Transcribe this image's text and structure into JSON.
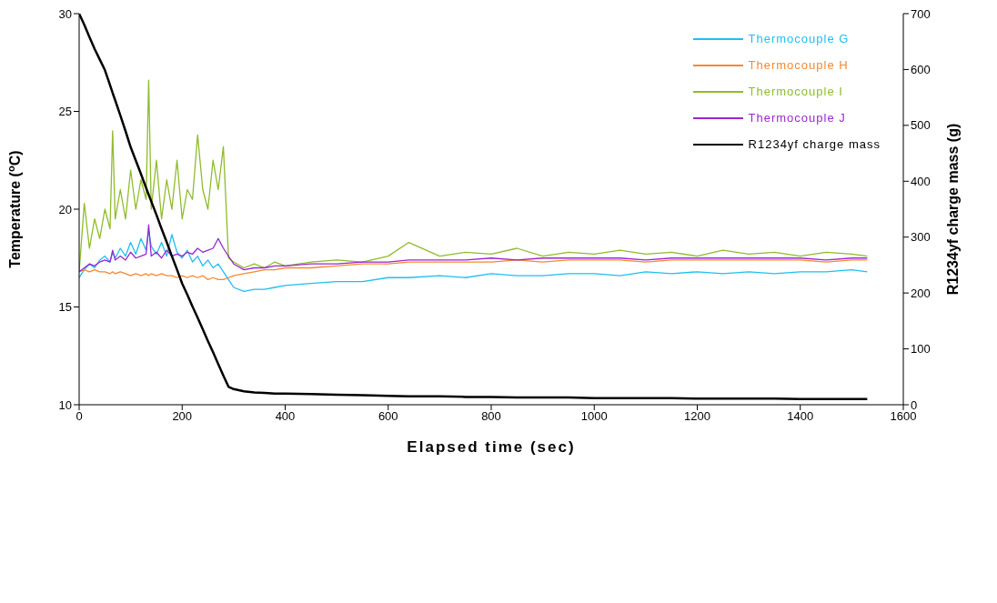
{
  "chart_data": {
    "type": "line",
    "xlabel": "Elapsed time (sec)",
    "ylabel": "Temperature ($^{o}$C)",
    "y2label": "R1234yf charge mass (g)",
    "x": [
      0,
      10,
      20,
      30,
      40,
      50,
      60,
      65,
      70,
      80,
      90,
      100,
      110,
      120,
      130,
      135,
      140,
      150,
      160,
      170,
      180,
      190,
      200,
      210,
      220,
      230,
      240,
      250,
      260,
      270,
      280,
      290,
      300,
      320,
      340,
      360,
      380,
      400,
      450,
      500,
      550,
      600,
      640,
      700,
      750,
      800,
      850,
      900,
      950,
      1000,
      1050,
      1100,
      1150,
      1200,
      1250,
      1300,
      1350,
      1400,
      1450,
      1500,
      1530
    ],
    "series": [
      {
        "name": "Thermocouple G",
        "color": "#1ebff0",
        "values": [
          16.5,
          16.9,
          17.2,
          17.0,
          17.4,
          17.6,
          17.3,
          17.8,
          17.5,
          18.0,
          17.6,
          18.3,
          17.7,
          18.5,
          17.9,
          18.9,
          18.1,
          17.7,
          18.3,
          17.6,
          18.7,
          17.8,
          17.5,
          17.9,
          17.3,
          17.6,
          17.1,
          17.4,
          17.0,
          17.2,
          16.8,
          16.4,
          16.0,
          15.8,
          15.9,
          15.9,
          16.0,
          16.1,
          16.2,
          16.3,
          16.3,
          16.5,
          16.5,
          16.6,
          16.5,
          16.7,
          16.6,
          16.6,
          16.7,
          16.7,
          16.6,
          16.8,
          16.7,
          16.8,
          16.7,
          16.8,
          16.7,
          16.8,
          16.8,
          16.9,
          16.8
        ]
      },
      {
        "name": "Thermocouple H",
        "color": "#f7882f",
        "values": [
          16.8,
          16.9,
          16.8,
          16.9,
          16.8,
          16.8,
          16.7,
          16.8,
          16.7,
          16.8,
          16.7,
          16.6,
          16.7,
          16.6,
          16.7,
          16.6,
          16.7,
          16.6,
          16.7,
          16.6,
          16.6,
          16.5,
          16.6,
          16.5,
          16.6,
          16.5,
          16.6,
          16.4,
          16.5,
          16.4,
          16.4,
          16.5,
          16.6,
          16.7,
          16.8,
          16.9,
          16.9,
          17.0,
          17.0,
          17.1,
          17.2,
          17.2,
          17.3,
          17.3,
          17.3,
          17.3,
          17.4,
          17.3,
          17.4,
          17.4,
          17.4,
          17.3,
          17.4,
          17.4,
          17.4,
          17.4,
          17.4,
          17.4,
          17.3,
          17.4,
          17.4
        ]
      },
      {
        "name": "Thermocouple I",
        "color": "#8fbc2b",
        "values": [
          16.8,
          20.3,
          18.0,
          19.5,
          18.5,
          20.0,
          19.0,
          24.0,
          19.5,
          21.0,
          19.5,
          22.0,
          20.0,
          21.5,
          20.5,
          26.6,
          20.0,
          22.5,
          19.5,
          21.5,
          20.0,
          22.5,
          19.5,
          21.0,
          20.5,
          23.8,
          21.0,
          20.0,
          22.5,
          21.0,
          23.2,
          17.5,
          17.3,
          17.0,
          17.2,
          17.0,
          17.3,
          17.1,
          17.3,
          17.4,
          17.3,
          17.6,
          18.3,
          17.6,
          17.8,
          17.7,
          18.0,
          17.6,
          17.8,
          17.7,
          17.9,
          17.7,
          17.8,
          17.6,
          17.9,
          17.7,
          17.8,
          17.6,
          17.8,
          17.7,
          17.6
        ]
      },
      {
        "name": "Thermocouple J",
        "color": "#9b27d1",
        "values": [
          16.8,
          17.0,
          17.2,
          17.1,
          17.3,
          17.4,
          17.3,
          17.9,
          17.4,
          17.6,
          17.4,
          17.8,
          17.5,
          17.6,
          17.7,
          19.2,
          17.6,
          17.8,
          17.5,
          17.9,
          17.6,
          17.7,
          17.6,
          17.8,
          17.7,
          18.0,
          17.8,
          17.9,
          18.0,
          18.5,
          18.0,
          17.6,
          17.2,
          16.9,
          17.0,
          17.0,
          17.1,
          17.1,
          17.2,
          17.2,
          17.3,
          17.3,
          17.4,
          17.4,
          17.4,
          17.5,
          17.4,
          17.5,
          17.5,
          17.5,
          17.5,
          17.4,
          17.5,
          17.5,
          17.5,
          17.5,
          17.5,
          17.5,
          17.4,
          17.5,
          17.5
        ]
      },
      {
        "name": "R1234yf charge mass",
        "color": "#000000",
        "axis": "y2",
        "values": [
          700,
          680,
          658,
          637,
          618,
          599,
          572,
          558,
          545,
          518,
          490,
          461,
          437,
          413,
          388,
          376,
          364,
          340,
          315,
          291,
          266,
          242,
          217,
          197,
          176,
          156,
          135,
          114,
          94,
          73,
          52,
          32,
          28,
          24,
          22,
          21,
          20,
          20,
          19,
          18,
          17,
          16,
          15,
          15,
          14,
          14,
          13,
          13,
          13,
          12,
          12,
          12,
          12,
          11,
          11,
          11,
          11,
          10,
          10,
          10,
          10
        ]
      }
    ],
    "xlim": [
      0,
      1600
    ],
    "xticks": [
      0,
      200,
      400,
      600,
      800,
      1000,
      1200,
      1400,
      1600
    ],
    "ylim": [
      10,
      30
    ],
    "yticks": [
      10,
      15,
      20,
      25,
      30
    ],
    "y2lim": [
      0,
      700
    ],
    "y2ticks": [
      0,
      100,
      200,
      300,
      400,
      500,
      600,
      700
    ],
    "grid": false,
    "legend": "top right",
    "marker": "none",
    "line_style": "solid"
  }
}
